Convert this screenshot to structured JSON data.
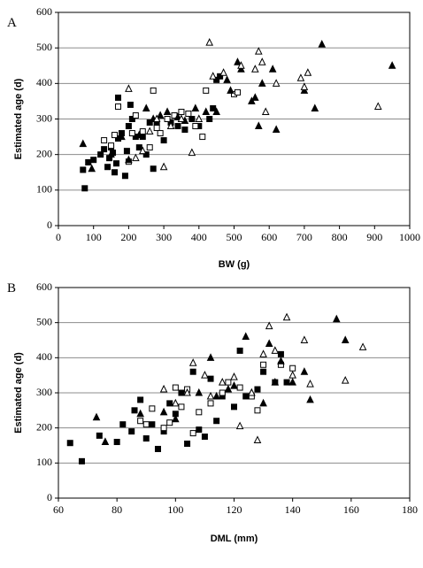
{
  "chart_data": [
    {
      "type": "scatter",
      "panel_label": "A",
      "x_label": "BW (g)",
      "y_label": "Estimated age (d)",
      "xlim": [
        0,
        1000
      ],
      "xticks": [
        0,
        100,
        200,
        300,
        400,
        500,
        600,
        700,
        800,
        900,
        1000
      ],
      "ylim": [
        0,
        600
      ],
      "yticks": [
        0,
        100,
        200,
        300,
        400,
        500,
        600
      ],
      "grid": true,
      "series": [
        {
          "marker": "square",
          "filled": true,
          "color": "#000000",
          "x": [
            75,
            70,
            85,
            100,
            120,
            130,
            140,
            145,
            150,
            155,
            160,
            165,
            170,
            180,
            190,
            195,
            200,
            205,
            210,
            220,
            230,
            240,
            250,
            260,
            270,
            280,
            300,
            320,
            340,
            360,
            380,
            400,
            430,
            440,
            450,
            460,
            170
          ],
          "values": [
            105,
            157,
            178,
            185,
            200,
            215,
            165,
            190,
            220,
            205,
            150,
            175,
            245,
            260,
            140,
            210,
            280,
            340,
            300,
            250,
            220,
            250,
            200,
            290,
            160,
            290,
            240,
            290,
            280,
            270,
            300,
            280,
            300,
            330,
            410,
            420,
            360
          ]
        },
        {
          "marker": "square",
          "filled": false,
          "color": "#000000",
          "x": [
            130,
            150,
            160,
            170,
            200,
            210,
            220,
            240,
            260,
            270,
            280,
            290,
            310,
            330,
            350,
            370,
            390,
            410,
            420,
            500,
            510
          ],
          "values": [
            240,
            225,
            255,
            335,
            180,
            260,
            310,
            265,
            220,
            380,
            275,
            260,
            300,
            310,
            320,
            315,
            280,
            250,
            380,
            370,
            375
          ]
        },
        {
          "marker": "triangle",
          "filled": true,
          "color": "#000000",
          "x": [
            70,
            95,
            150,
            180,
            200,
            230,
            250,
            270,
            290,
            310,
            340,
            360,
            390,
            420,
            450,
            480,
            490,
            510,
            520,
            550,
            560,
            570,
            580,
            610,
            620,
            700,
            730,
            750,
            950
          ],
          "values": [
            230,
            160,
            200,
            250,
            185,
            255,
            330,
            300,
            310,
            320,
            305,
            295,
            330,
            320,
            320,
            410,
            380,
            460,
            440,
            350,
            360,
            280,
            400,
            440,
            270,
            380,
            330,
            510,
            450
          ]
        },
        {
          "marker": "triangle",
          "filled": false,
          "color": "#000000",
          "x": [
            200,
            220,
            240,
            260,
            280,
            300,
            320,
            350,
            380,
            400,
            430,
            440,
            470,
            520,
            560,
            570,
            580,
            590,
            620,
            690,
            700,
            710,
            910
          ],
          "values": [
            385,
            190,
            210,
            265,
            300,
            165,
            280,
            300,
            205,
            300,
            515,
            420,
            430,
            450,
            440,
            490,
            460,
            320,
            400,
            415,
            390,
            430,
            335
          ]
        }
      ]
    },
    {
      "type": "scatter",
      "panel_label": "B",
      "x_label": "DML (mm)",
      "y_label": "Estimated age (d)",
      "xlim": [
        60,
        180
      ],
      "xticks": [
        60,
        80,
        100,
        120,
        140,
        160,
        180
      ],
      "ylim": [
        0,
        600
      ],
      "yticks": [
        0,
        100,
        200,
        300,
        400,
        500,
        600
      ],
      "grid": true,
      "series": [
        {
          "marker": "square",
          "filled": true,
          "color": "#000000",
          "x": [
            64,
            68,
            74,
            80,
            82,
            85,
            86,
            88,
            90,
            92,
            94,
            96,
            98,
            100,
            102,
            104,
            106,
            108,
            110,
            112,
            114,
            116,
            120,
            122,
            124,
            128,
            130,
            136,
            134,
            138
          ],
          "values": [
            157,
            105,
            178,
            160,
            210,
            190,
            250,
            280,
            170,
            210,
            140,
            190,
            270,
            240,
            300,
            155,
            360,
            195,
            175,
            340,
            220,
            290,
            260,
            420,
            290,
            310,
            360,
            410,
            330,
            330
          ]
        },
        {
          "marker": "square",
          "filled": false,
          "color": "#000000",
          "x": [
            88,
            90,
            92,
            96,
            98,
            100,
            102,
            104,
            106,
            108,
            112,
            116,
            118,
            122,
            126,
            128,
            130,
            136,
            140
          ],
          "values": [
            220,
            210,
            255,
            200,
            215,
            315,
            260,
            310,
            185,
            245,
            270,
            300,
            330,
            315,
            290,
            250,
            380,
            380,
            370
          ]
        },
        {
          "marker": "triangle",
          "filled": true,
          "color": "#000000",
          "x": [
            73,
            76,
            88,
            96,
            100,
            108,
            112,
            114,
            118,
            120,
            124,
            126,
            130,
            132,
            134,
            136,
            140,
            144,
            146,
            155,
            158
          ],
          "values": [
            230,
            160,
            240,
            245,
            225,
            300,
            400,
            290,
            310,
            320,
            460,
            300,
            270,
            440,
            330,
            390,
            330,
            360,
            280,
            510,
            450
          ]
        },
        {
          "marker": "triangle",
          "filled": false,
          "color": "#000000",
          "x": [
            96,
            100,
            104,
            106,
            110,
            112,
            116,
            120,
            122,
            126,
            128,
            130,
            132,
            134,
            138,
            140,
            144,
            146,
            158,
            164
          ],
          "values": [
            310,
            270,
            300,
            385,
            350,
            290,
            330,
            345,
            205,
            300,
            165,
            410,
            490,
            420,
            515,
            350,
            450,
            325,
            335,
            430
          ]
        }
      ]
    }
  ]
}
